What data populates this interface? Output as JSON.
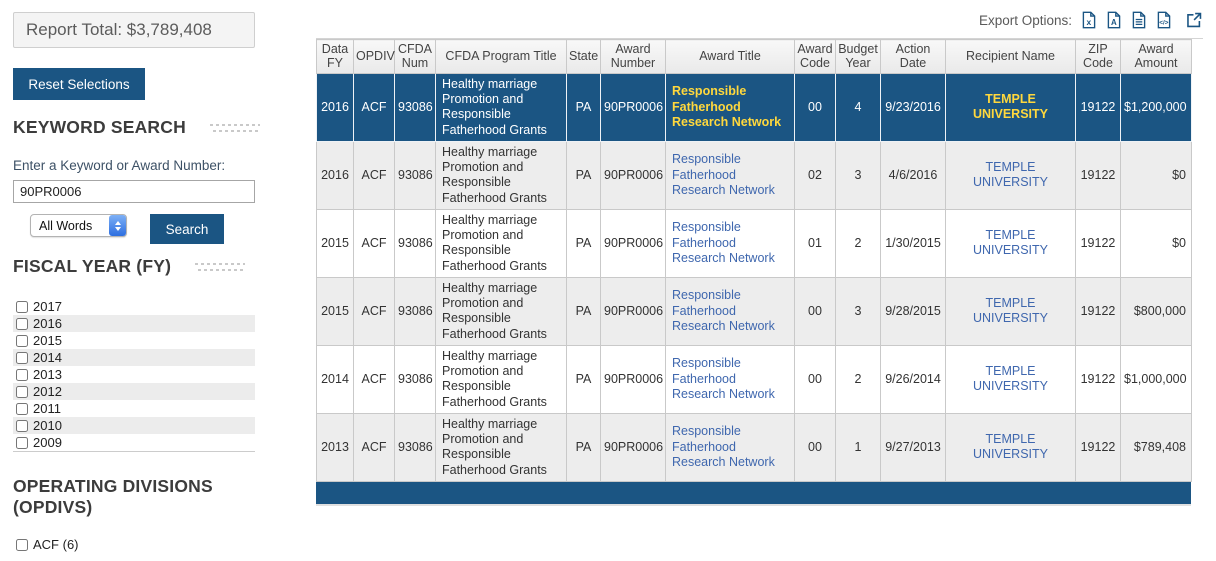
{
  "report_total": "Report Total: $3,789,408",
  "sidebar": {
    "reset_button": "Reset Selections",
    "keyword_search": {
      "heading": "KEYWORD SEARCH",
      "input_label": "Enter a Keyword or Award Number:",
      "input_value": "90PR0006",
      "match_select": "All Words",
      "search_button": "Search"
    },
    "fiscal_year": {
      "heading": "FISCAL YEAR (FY)",
      "options": [
        "2017",
        "2016",
        "2015",
        "2014",
        "2013",
        "2012",
        "2011",
        "2010",
        "2009"
      ]
    },
    "operating_divisions": {
      "heading": "OPERATING DIVISIONS (OPDIVS)",
      "options": [
        "ACF (6)"
      ]
    }
  },
  "export": {
    "label": "Export Options:",
    "icons": [
      "excel-export-icon",
      "pdf-export-icon",
      "text-export-icon",
      "code-export-icon",
      "external-link-icon"
    ]
  },
  "table": {
    "columns": [
      {
        "key": "data_fy",
        "label": "Data FY",
        "align": "center"
      },
      {
        "key": "opdiv",
        "label": "OPDIV",
        "align": "center"
      },
      {
        "key": "cfda_num",
        "label": "CFDA Num",
        "align": "center"
      },
      {
        "key": "cfda_program_title",
        "label": "CFDA Program Title",
        "align": "left"
      },
      {
        "key": "state",
        "label": "State",
        "align": "center"
      },
      {
        "key": "award_number",
        "label": "Award Number",
        "align": "center"
      },
      {
        "key": "award_title",
        "label": "Award Title",
        "align": "left",
        "link": true
      },
      {
        "key": "award_code",
        "label": "Award Code",
        "align": "center"
      },
      {
        "key": "budget_year",
        "label": "Budget Year",
        "align": "center"
      },
      {
        "key": "action_date",
        "label": "Action Date",
        "align": "center"
      },
      {
        "key": "recipient_name",
        "label": "Recipient Name",
        "align": "center",
        "link": true
      },
      {
        "key": "zip_code",
        "label": "ZIP Code",
        "align": "center"
      },
      {
        "key": "award_amount",
        "label": "Award Amount",
        "align": "right"
      }
    ],
    "rows": [
      {
        "selected": true,
        "cells": [
          "2016",
          "ACF",
          "93086",
          "Healthy marriage Promotion and Responsible Fatherhood Grants",
          "PA",
          "90PR0006",
          "Responsible Fatherhood Research Network",
          "00",
          "4",
          "9/23/2016",
          "TEMPLE UNIVERSITY",
          "19122",
          "$1,200,000"
        ]
      },
      {
        "selected": false,
        "cells": [
          "2016",
          "ACF",
          "93086",
          "Healthy marriage Promotion and Responsible Fatherhood Grants",
          "PA",
          "90PR0006",
          "Responsible Fatherhood Research Network",
          "02",
          "3",
          "4/6/2016",
          "TEMPLE UNIVERSITY",
          "19122",
          "$0"
        ]
      },
      {
        "selected": false,
        "cells": [
          "2015",
          "ACF",
          "93086",
          "Healthy marriage Promotion and Responsible Fatherhood Grants",
          "PA",
          "90PR0006",
          "Responsible Fatherhood Research Network",
          "01",
          "2",
          "1/30/2015",
          "TEMPLE UNIVERSITY",
          "19122",
          "$0"
        ]
      },
      {
        "selected": false,
        "cells": [
          "2015",
          "ACF",
          "93086",
          "Healthy marriage Promotion and Responsible Fatherhood Grants",
          "PA",
          "90PR0006",
          "Responsible Fatherhood Research Network",
          "00",
          "3",
          "9/28/2015",
          "TEMPLE UNIVERSITY",
          "19122",
          "$800,000"
        ]
      },
      {
        "selected": false,
        "cells": [
          "2014",
          "ACF",
          "93086",
          "Healthy marriage Promotion and Responsible Fatherhood Grants",
          "PA",
          "90PR0006",
          "Responsible Fatherhood Research Network",
          "00",
          "2",
          "9/26/2014",
          "TEMPLE UNIVERSITY",
          "19122",
          "$1,000,000"
        ]
      },
      {
        "selected": false,
        "cells": [
          "2013",
          "ACF",
          "93086",
          "Healthy marriage Promotion and Responsible Fatherhood Grants",
          "PA",
          "90PR0006",
          "Responsible Fatherhood Research Network",
          "00",
          "1",
          "9/27/2013",
          "TEMPLE UNIVERSITY",
          "19122",
          "$789,408"
        ]
      }
    ]
  },
  "colors": {
    "accent_blue": "#1b5583",
    "link_blue": "#3f67ae",
    "highlight_yellow": "#ffd83d",
    "row_alt_gray": "#ededed"
  }
}
